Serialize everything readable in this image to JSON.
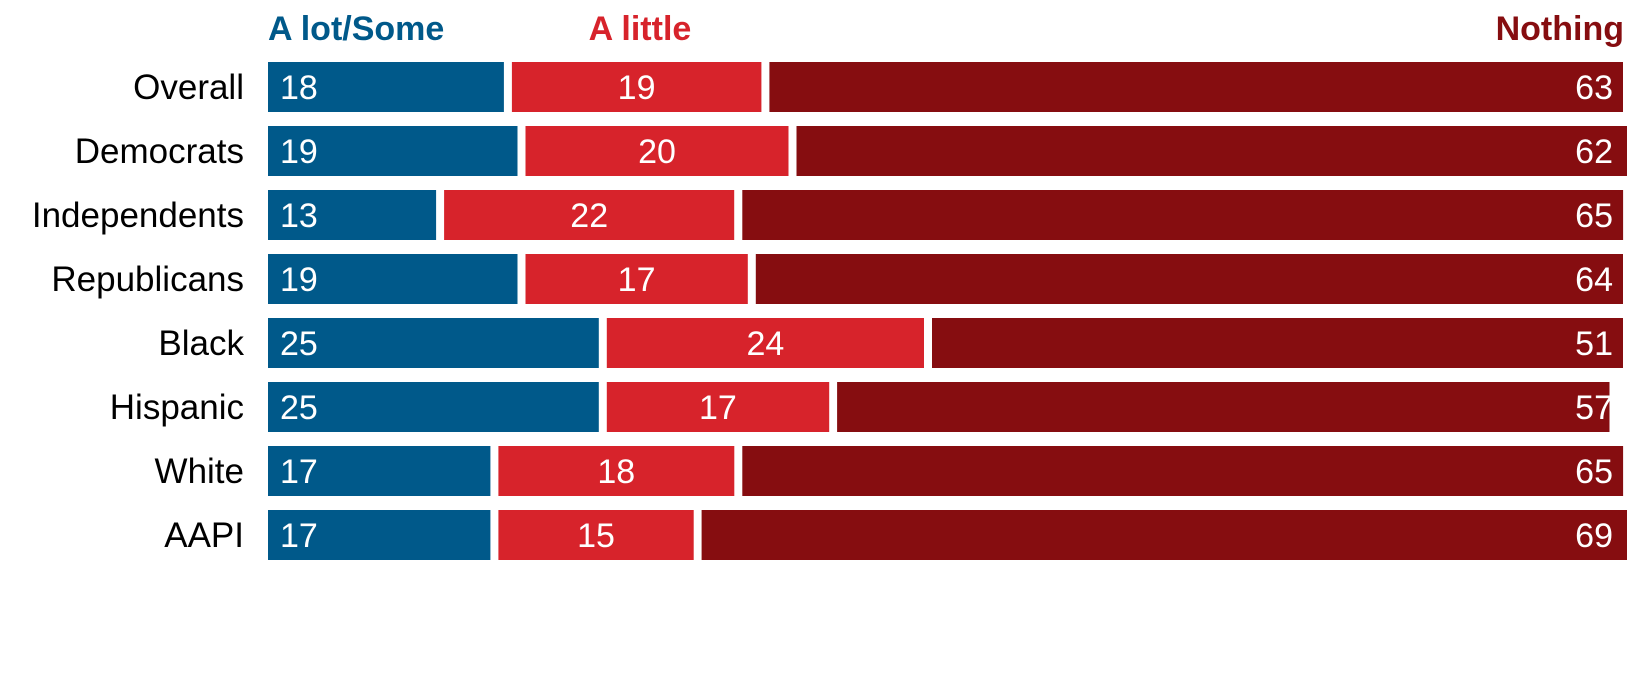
{
  "chart_data": {
    "type": "bar",
    "orientation": "horizontal",
    "stacked": true,
    "legend_position": "top",
    "grid": false,
    "xlim": [
      0,
      100
    ],
    "categories": [
      "Overall",
      "Democrats",
      "Independents",
      "Republicans",
      "Black",
      "Hispanic",
      "White",
      "AAPI"
    ],
    "groups": [
      [
        "Overall"
      ],
      [
        "Democrats",
        "Independents",
        "Republicans"
      ],
      [
        "Black",
        "Hispanic",
        "White",
        "AAPI"
      ]
    ],
    "series": [
      {
        "name": "A lot/Some",
        "color": "#00598a",
        "values": [
          18,
          19,
          13,
          19,
          25,
          25,
          17,
          17
        ]
      },
      {
        "name": "A little",
        "color": "#d7232b",
        "values": [
          19,
          20,
          22,
          17,
          24,
          17,
          18,
          15
        ]
      },
      {
        "name": "Nothing",
        "color": "#860d10",
        "values": [
          63,
          62,
          65,
          64,
          51,
          57,
          65,
          69
        ]
      }
    ]
  }
}
